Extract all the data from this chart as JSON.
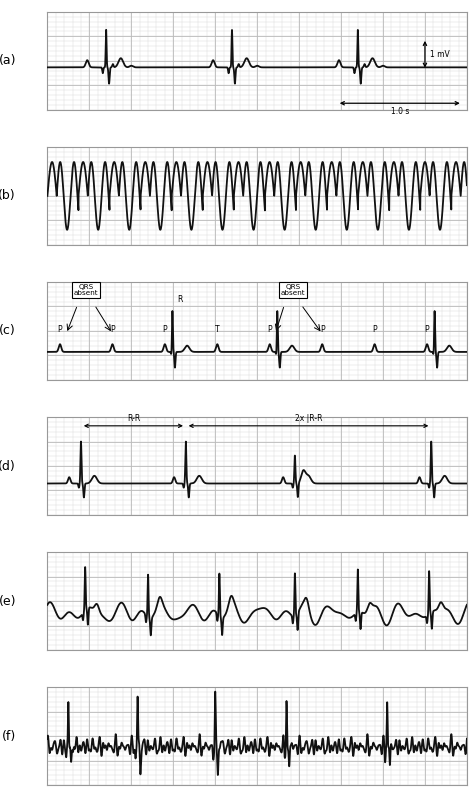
{
  "fig_width": 4.74,
  "fig_height": 7.93,
  "bg_color": "#ffffff",
  "ecg_color": "#111111",
  "grid_minor_color": "#d8d8d8",
  "grid_major_color": "#bbbbbb",
  "line_width": 1.3,
  "panel_labels": [
    "(a)",
    "(b)",
    "(c)",
    "(d)",
    "(e)",
    "(f)"
  ]
}
